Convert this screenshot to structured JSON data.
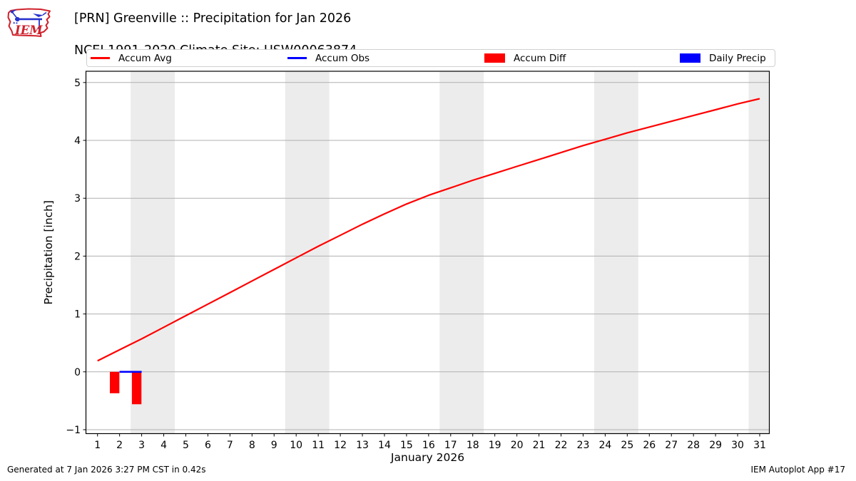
{
  "header": {
    "title_line1": "[PRN] Greenville :: Precipitation for Jan 2026",
    "title_line2": "NCEI 1991-2020 Climate Site: USW00063874",
    "logo_text": "IEM"
  },
  "legend": {
    "items": [
      {
        "label": "Accum Avg",
        "swatch": "line",
        "color": "#ff0000"
      },
      {
        "label": "Accum Obs",
        "swatch": "line",
        "color": "#0000ff"
      },
      {
        "label": "Accum Diff",
        "swatch": "rect",
        "color": "#ff0000"
      },
      {
        "label": "Daily Precip",
        "swatch": "rect",
        "color": "#0000ff"
      }
    ]
  },
  "colors": {
    "accent_red": "#ff0000",
    "accent_blue": "#0000ff",
    "grid": "#b0b0b0",
    "weekend_band": "#ececec",
    "axis": "#000000",
    "legend_border": "#d0d0d0",
    "logo_red": "#cf222c",
    "logo_blue": "#2633cc"
  },
  "chart_data": {
    "type": "line+bar",
    "title": "[PRN] Greenville :: Precipitation for Jan 2026",
    "subtitle": "NCEI 1991-2020 Climate Site: USW00063874",
    "xlabel": "January 2026",
    "ylabel": "Precipitation [inch]",
    "x_unit": "day of month",
    "xlim": [
      0.5,
      31.45
    ],
    "ylim": [
      -1.07,
      5.2
    ],
    "xticks": [
      1,
      2,
      3,
      4,
      5,
      6,
      7,
      8,
      9,
      10,
      11,
      12,
      13,
      14,
      15,
      16,
      17,
      18,
      19,
      20,
      21,
      22,
      23,
      24,
      25,
      26,
      27,
      28,
      29,
      30,
      31
    ],
    "yticks": [
      -1,
      0,
      1,
      2,
      3,
      4,
      5
    ],
    "grid": "horizontal",
    "legend_position": "top",
    "weekend_bands": [
      [
        2.5,
        4.5
      ],
      [
        9.5,
        11.5
      ],
      [
        16.5,
        18.5
      ],
      [
        23.5,
        25.5
      ],
      [
        30.5,
        31.45
      ]
    ],
    "series": [
      {
        "name": "Accum Avg",
        "type": "line",
        "color": "#ff0000",
        "width": 2.2,
        "x": [
          1,
          2,
          3,
          4,
          5,
          6,
          7,
          8,
          9,
          10,
          11,
          12,
          13,
          14,
          15,
          16,
          17,
          18,
          19,
          20,
          21,
          22,
          23,
          24,
          25,
          26,
          27,
          28,
          29,
          30,
          31
        ],
        "y": [
          0.19,
          0.38,
          0.57,
          0.77,
          0.97,
          1.17,
          1.37,
          1.57,
          1.77,
          1.97,
          2.17,
          2.36,
          2.55,
          2.73,
          2.9,
          3.05,
          3.18,
          3.31,
          3.43,
          3.55,
          3.67,
          3.79,
          3.91,
          4.02,
          4.13,
          4.23,
          4.33,
          4.43,
          4.53,
          4.63,
          4.72
        ]
      },
      {
        "name": "Accum Obs",
        "type": "line",
        "color": "#0000ff",
        "width": 2.6,
        "x": [
          2,
          3
        ],
        "y": [
          0.0,
          0.0
        ]
      },
      {
        "name": "Accum Diff",
        "type": "bar",
        "color": "#ff0000",
        "bar_width_days": 0.43,
        "bar_align": "right-edge-at-day",
        "x": [
          2,
          3
        ],
        "y": [
          -0.37,
          -0.56
        ]
      },
      {
        "name": "Daily Precip",
        "type": "bar",
        "color": "#0000ff",
        "bar_width_days": 0.43,
        "bar_align": "right-edge-at-day",
        "x": [
          2,
          3
        ],
        "y": [
          0.0,
          0.0
        ]
      }
    ]
  },
  "footer": {
    "left": "Generated at 7 Jan 2026 3:27 PM CST in 0.42s",
    "right": "IEM Autoplot App #17"
  }
}
